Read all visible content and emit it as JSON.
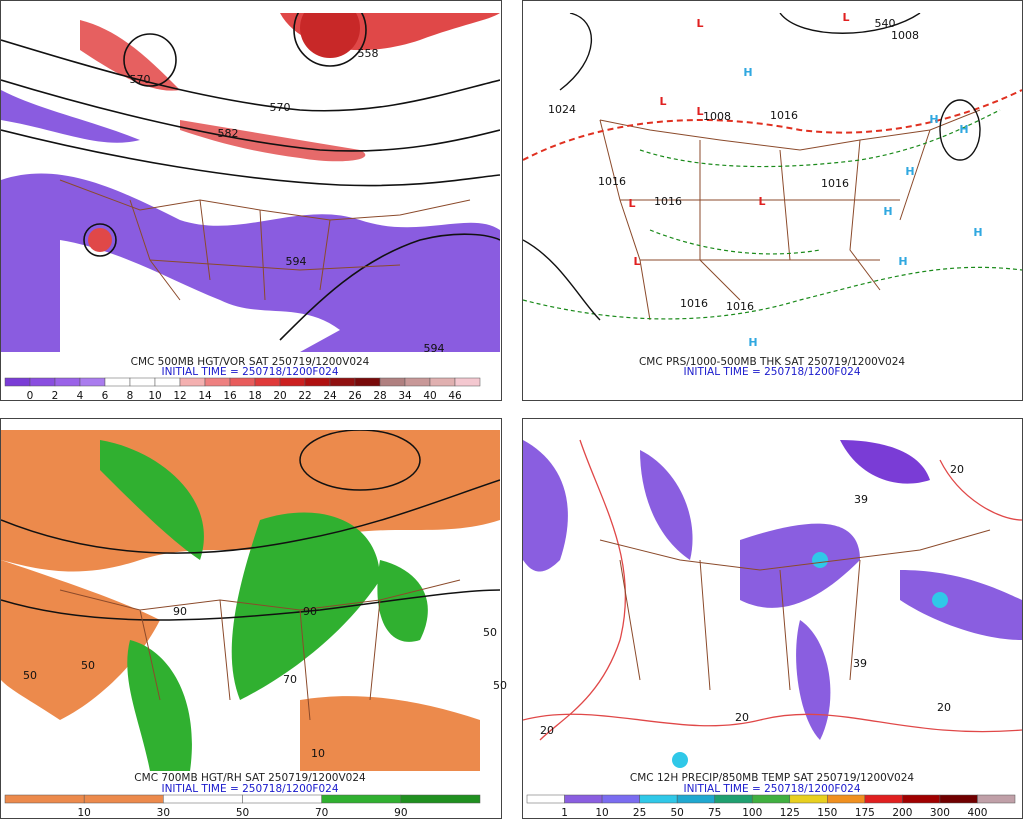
{
  "panels": [
    {
      "caption": "CMC 500MB HGT/VOR SAT 250719/1200V024",
      "initial_time": "INITIAL TIME = 250718/1200F024",
      "colorbar": {
        "labels": [
          "0",
          "2",
          "4",
          "6",
          "8",
          "10",
          "12",
          "14",
          "16",
          "18",
          "20",
          "22",
          "24",
          "26",
          "28",
          "34",
          "40",
          "46"
        ],
        "colors": [
          "#7a3cd6",
          "#8a4ee0",
          "#9a62e8",
          "#aa7cee",
          "#ffffff",
          "#ffffff",
          "#ffffff",
          "#f4b0b0",
          "#ee8080",
          "#e85c5c",
          "#e03a3a",
          "#cc2020",
          "#b01010",
          "#901010",
          "#780a0a",
          "#b08080",
          "#c89898",
          "#e0b0b0",
          "#f4c8d0"
        ]
      },
      "map_labels": [
        "570",
        "570",
        "558",
        "582",
        "594",
        "594"
      ]
    },
    {
      "caption": "CMC PRS/1000-500MB THK SAT 250719/1200V024",
      "initial_time": "INITIAL TIME = 250718/1200F024",
      "map_labels": [
        "L",
        "L",
        "L",
        "L",
        "L",
        "L",
        "L",
        "H",
        "H",
        "H",
        "H",
        "H",
        "H",
        "H",
        "H",
        "1024",
        "1008",
        "1016",
        "1016",
        "1016",
        "1016",
        "1016",
        "1016",
        "540",
        "1008"
      ]
    },
    {
      "caption": "CMC 700MB HGT/RH SAT 250719/1200V024",
      "initial_time": "INITIAL TIME = 250718/1200F024",
      "colorbar": {
        "labels": [
          "10",
          "30",
          "50",
          "70",
          "90"
        ],
        "colors": [
          "#ec8a4c",
          "#ec8a4c",
          "#ffffff",
          "#ffffff",
          "#30b030",
          "#209020"
        ]
      },
      "map_labels": [
        "50",
        "50",
        "50",
        "90",
        "90",
        "70",
        "50",
        "10"
      ]
    },
    {
      "caption": "CMC 12H PRECIP/850MB TEMP SAT 250719/1200V024",
      "initial_time": "INITIAL TIME = 250718/1200F024",
      "colorbar": {
        "labels": [
          "1",
          "10",
          "25",
          "50",
          "75",
          "100",
          "125",
          "150",
          "175",
          "200",
          "300",
          "400"
        ],
        "colors": [
          "#ffffff",
          "#8a5ee0",
          "#7a6cf0",
          "#30c8e8",
          "#20a8d0",
          "#20a070",
          "#40b040",
          "#e8d020",
          "#f09020",
          "#e02020",
          "#a00000",
          "#700000",
          "#c0a0a8"
        ]
      },
      "map_labels": [
        "20",
        "20",
        "20",
        "39",
        "39",
        "20"
      ]
    }
  ]
}
